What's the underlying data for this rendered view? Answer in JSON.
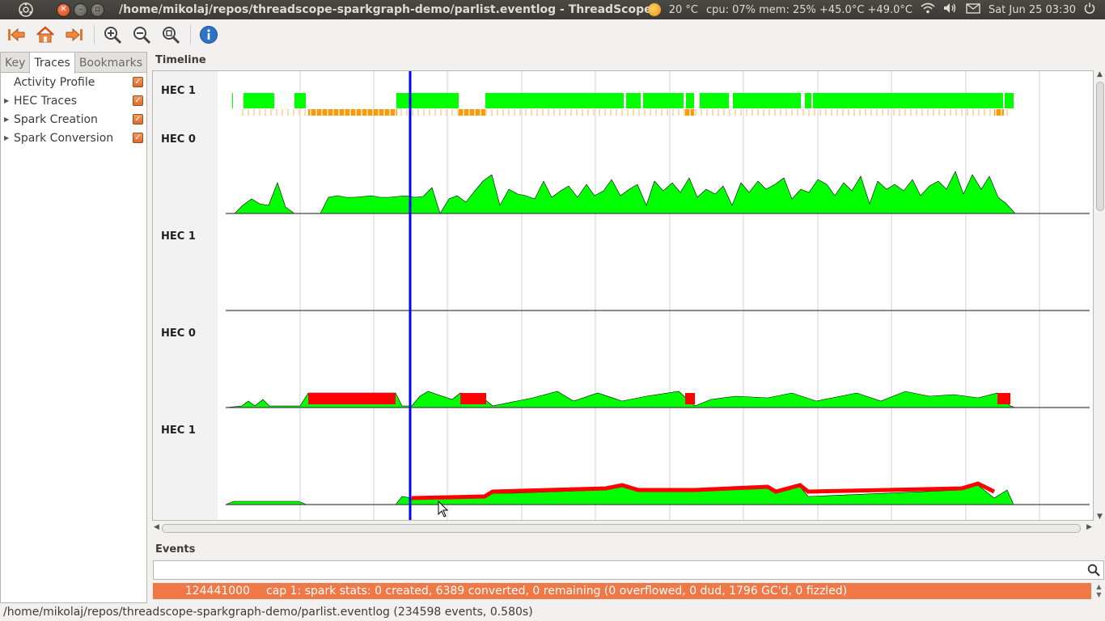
{
  "window": {
    "title": "/home/mikolaj/repos/threadscope-sparkgraph-demo/parlist.eventlog - ThreadScope"
  },
  "indicators": {
    "weather": "20 °C",
    "system": "cpu: 07% mem: 25% +45.0°C +49.0°C",
    "clock": "Sat Jun 25 03:30"
  },
  "toolbar": {
    "buttons": [
      "go-first-icon",
      "home-icon",
      "go-last-icon",
      "zoom-in-icon",
      "zoom-out-icon",
      "zoom-fit-icon",
      "info-icon"
    ]
  },
  "sidebar": {
    "tabs": [
      {
        "label": "Key",
        "active": false
      },
      {
        "label": "Traces",
        "active": true
      },
      {
        "label": "Bookmarks",
        "active": false
      }
    ],
    "traces": [
      {
        "label": "Activity Profile",
        "expandable": false,
        "checked": true
      },
      {
        "label": "HEC Traces",
        "expandable": true,
        "checked": true
      },
      {
        "label": "Spark Creation",
        "expandable": true,
        "checked": true
      },
      {
        "label": "Spark Conversion",
        "expandable": true,
        "checked": true
      }
    ]
  },
  "timeline": {
    "label": "Timeline",
    "hec_labels": [
      "HEC 1",
      "HEC 0",
      "HEC 1",
      "HEC 0",
      "HEC 1"
    ],
    "colors": {
      "running": "#00ff00",
      "gc": "#ff9900",
      "fizzled": "#ff0000",
      "cursor": "#0000ff",
      "grid": "#ccccee"
    }
  },
  "events": {
    "label": "Events",
    "search_value": "",
    "rows": [
      {
        "time": "124441000",
        "description": "cap 1: spark stats: 0 created, 6389 converted, 0 remaining (0 overflowed, 0 dud, 1796 GC'd, 0 fizzled)",
        "color": "#f07746"
      }
    ]
  },
  "statusbar": {
    "text": "/home/mikolaj/repos/threadscope-sparkgraph-demo/parlist.eventlog (234598 events, 0.580s)"
  }
}
